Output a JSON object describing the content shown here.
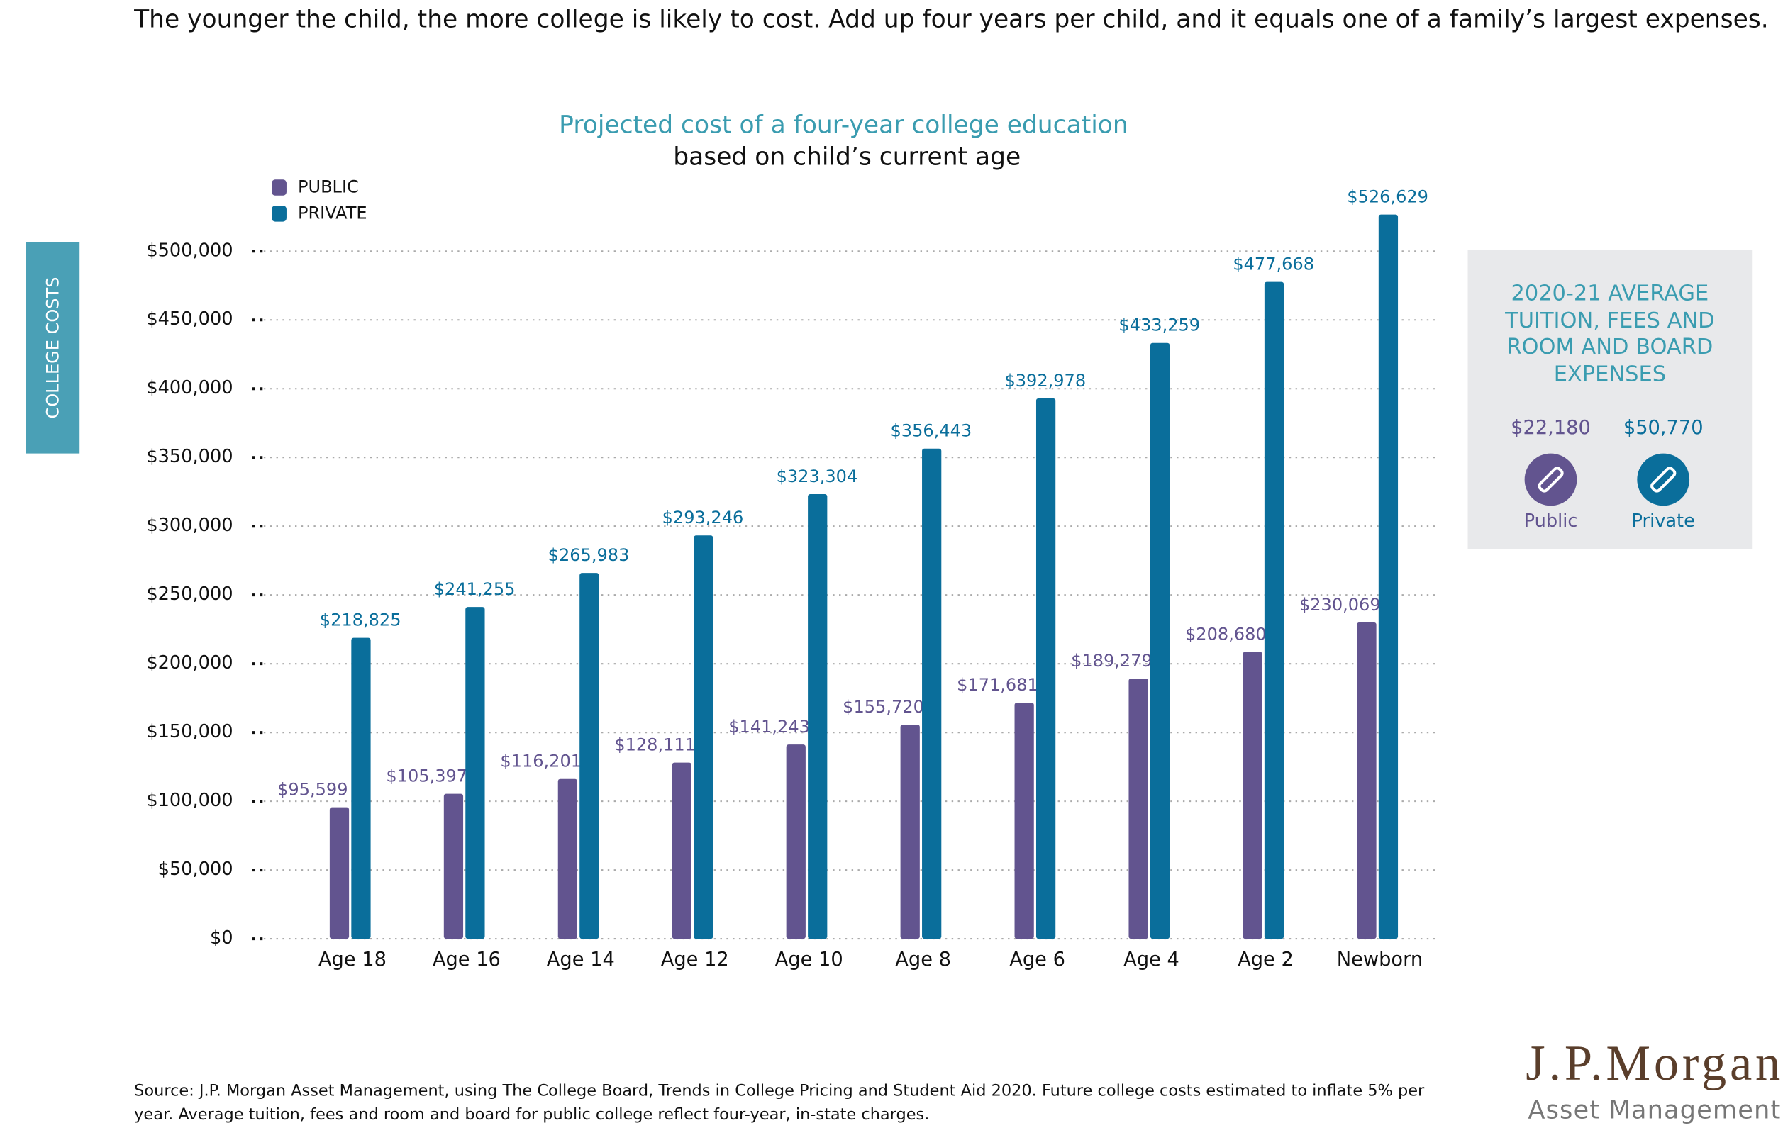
{
  "header": "The younger the child, the more college is likely to cost. Add up four years per child, and it equals one of a family’s largest expenses.",
  "chart_data": {
    "type": "bar",
    "title": "Projected cost of a four-year college education",
    "subtitle": "based on child’s current age",
    "y_label": "COLLEGE COSTS",
    "categories": [
      "Age 18",
      "Age 16",
      "Age 14",
      "Age 12",
      "Age 10",
      "Age 8",
      "Age 6",
      "Age 4",
      "Age 2",
      "Newborn"
    ],
    "series": [
      {
        "name": "PUBLIC",
        "color": "#62548f",
        "values": [
          95599,
          105397,
          116201,
          128111,
          141243,
          155720,
          171681,
          189279,
          208680,
          230069
        ],
        "value_labels": [
          "$95,599",
          "$105,397",
          "$116,201",
          "$128,111",
          "$141,243",
          "$155,720",
          "$171,681",
          "$189,279",
          "$208,680",
          "$230,069"
        ]
      },
      {
        "name": "PRIVATE",
        "color": "#0a6e9b",
        "values": [
          218825,
          241255,
          265983,
          293246,
          323304,
          356443,
          392978,
          433259,
          477668,
          526629
        ],
        "value_labels": [
          "$218,825",
          "$241,255",
          "$265,983",
          "$293,246",
          "$323,304",
          "$356,443",
          "$392,978",
          "$433,259",
          "$477,668",
          "$526,629"
        ]
      }
    ],
    "ylim": [
      0,
      500000
    ],
    "yticks": [
      {
        "value": 0,
        "label": "$0"
      },
      {
        "value": 50000,
        "label": "$50,000"
      },
      {
        "value": 100000,
        "label": "$100,000"
      },
      {
        "value": 150000,
        "label": "$150,000"
      },
      {
        "value": 200000,
        "label": "$200,000"
      },
      {
        "value": 250000,
        "label": "$250,000"
      },
      {
        "value": 300000,
        "label": "$300,000"
      },
      {
        "value": 350000,
        "label": "$350,000"
      },
      {
        "value": 400000,
        "label": "$400,000"
      },
      {
        "value": 450000,
        "label": "$450,000"
      },
      {
        "value": 500000,
        "label": "$500,000"
      }
    ],
    "grid": true,
    "legend": "top-left"
  },
  "sidebar": {
    "title_lines": [
      "2020-21 AVERAGE",
      "TUITION, FEES AND",
      "ROOM AND BOARD",
      "EXPENSES"
    ],
    "public_value": "$22,180",
    "private_value": "$50,770",
    "public_label": "Public",
    "private_label": "Private"
  },
  "footer": [
    "Source: J.P. Morgan Asset Management, using The College Board, Trends in College Pricing and Student Aid 2020. Future college costs estimated to inflate 5% per",
    "year. Average tuition, fees and room and board for public college reflect four-year, in-state charges."
  ],
  "logo": {
    "name": "J.P.Morgan",
    "sub": "Asset Management"
  }
}
